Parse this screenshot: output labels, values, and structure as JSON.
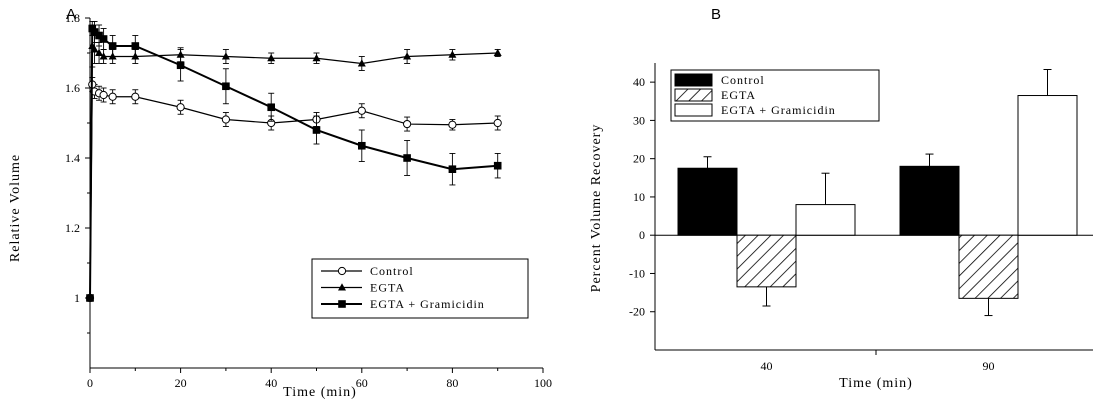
{
  "panels": {
    "a_label": "A",
    "b_label": "B"
  },
  "chart_data": [
    {
      "type": "line",
      "xlabel": "Time (min)",
      "ylabel": "Relative Volume",
      "xlim": [
        0,
        100
      ],
      "ylim": [
        0.8,
        1.8
      ],
      "xticks": [
        0,
        20,
        40,
        60,
        80,
        100
      ],
      "yticks": [
        1,
        1.2,
        1.4,
        1.6,
        1.8
      ],
      "ytick_labels": [
        "1",
        "1.2",
        "1.4",
        "1.6",
        "1.8"
      ],
      "legend_position": "bottom-right",
      "series": [
        {
          "name": "Control",
          "marker": "circle-open",
          "x": [
            0,
            0.5,
            1,
            2,
            3,
            5,
            10,
            20,
            30,
            40,
            50,
            60,
            70,
            80,
            90
          ],
          "y": [
            1.0,
            1.61,
            1.59,
            1.585,
            1.58,
            1.575,
            1.575,
            1.545,
            1.51,
            1.5,
            1.51,
            1.535,
            1.497,
            1.495,
            1.5
          ],
          "err": [
            0,
            0.02,
            0.02,
            0.02,
            0.02,
            0.02,
            0.02,
            0.02,
            0.02,
            0.02,
            0.02,
            0.02,
            0.02,
            0.015,
            0.02
          ]
        },
        {
          "name": "EGTA",
          "marker": "triangle-filled",
          "x": [
            0,
            0.5,
            1,
            2,
            3,
            5,
            10,
            20,
            30,
            40,
            50,
            60,
            70,
            80,
            90
          ],
          "y": [
            1.0,
            1.72,
            1.71,
            1.7,
            1.69,
            1.69,
            1.69,
            1.695,
            1.69,
            1.685,
            1.685,
            1.67,
            1.69,
            1.695,
            1.7
          ],
          "err": [
            0,
            0.06,
            0.04,
            0.03,
            0.02,
            0.02,
            0.02,
            0.02,
            0.02,
            0.015,
            0.015,
            0.02,
            0.02,
            0.015,
            0.01
          ]
        },
        {
          "name": "EGTA + Gramicidin",
          "marker": "square-filled",
          "x": [
            0,
            0.5,
            1,
            2,
            3,
            5,
            10,
            20,
            30,
            40,
            50,
            60,
            70,
            80,
            90
          ],
          "y": [
            1.0,
            1.77,
            1.76,
            1.75,
            1.74,
            1.72,
            1.72,
            1.665,
            1.605,
            1.545,
            1.48,
            1.435,
            1.4,
            1.368,
            1.378
          ],
          "err": [
            0,
            0.02,
            0.03,
            0.03,
            0.03,
            0.03,
            0.03,
            0.045,
            0.05,
            0.04,
            0.04,
            0.045,
            0.05,
            0.045,
            0.035
          ]
        }
      ]
    },
    {
      "type": "bar",
      "xlabel": "Time (min)",
      "ylabel": "Percent Volume Recovery",
      "categories": [
        "40",
        "90"
      ],
      "ylim": [
        -30,
        45
      ],
      "yticks": [
        -20,
        -10,
        0,
        10,
        20,
        30,
        40
      ],
      "legend_position": "top-left",
      "series": [
        {
          "name": "Control",
          "fill": "solid-black",
          "values": [
            17.5,
            18
          ],
          "err": [
            3,
            3.2
          ]
        },
        {
          "name": "EGTA",
          "fill": "diagonal-hatch",
          "values": [
            -13.5,
            -16.5
          ],
          "err": [
            5,
            4.5
          ]
        },
        {
          "name": "EGTA + Gramicidin",
          "fill": "white",
          "values": [
            8,
            36.5
          ],
          "err": [
            8.2,
            6.8
          ]
        }
      ]
    }
  ]
}
